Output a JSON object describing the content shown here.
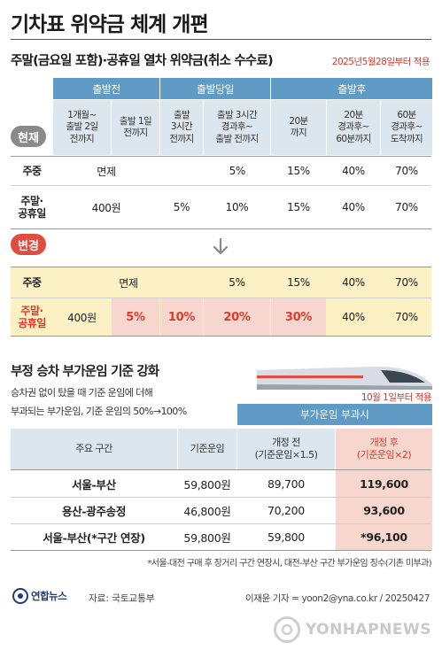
{
  "title": "기차표 위약금 체계 개편",
  "section1": {
    "subtitle": "주말(금요일 포함)·공휴일 열차 위약금(취소 수수료)",
    "effective": "2025년5월28일부터 적용",
    "groups": [
      "출발전",
      "출발당일",
      "출발후"
    ],
    "columns": [
      "1개월~\n출발 2일\n전까지",
      "출발 1일\n전까지",
      "출발\n3시간\n전까지",
      "출발 3시간\n경과후~\n출발 전까지",
      "20분\n까지",
      "20분\n경과후~\n60분까지",
      "60분\n경과후~\n도착까지"
    ],
    "badge_current": "현재",
    "badge_changed": "변경",
    "current": {
      "weekday_label": "주중",
      "weekday_free": "면제",
      "weekday": [
        "5%",
        "15%",
        "40%",
        "70%"
      ],
      "weekend_label": "주말·\n공휴일",
      "weekend": [
        "400원",
        "5%",
        "10%",
        "15%",
        "40%",
        "70%"
      ]
    },
    "changed": {
      "weekday_label": "주중",
      "weekday_free": "면제",
      "weekday": [
        "5%",
        "15%",
        "40%",
        "70%"
      ],
      "weekend_label": "주말·\n공휴일",
      "weekend": [
        "400원",
        "5%",
        "10%",
        "20%",
        "30%",
        "40%",
        "70%"
      ]
    }
  },
  "section2": {
    "title": "부정 승차 부가운임 기준 강화",
    "desc1": "승차권 없이 탔을 때 기준 운임에 더해",
    "desc2": "부과되는 부가운임, 기준 운임의 50%→100%",
    "effective": "10월 1일부터 적용",
    "group_header": "부가운임 부과시",
    "headers": [
      "주요 구간",
      "기준운임",
      "개정 전\n(기준운임×1.5)",
      "개정 후\n(기준운임×2)"
    ],
    "rows": [
      {
        "route": "서울-부산",
        "base": "59,800원",
        "before": "89,700",
        "after": "119,600"
      },
      {
        "route": "용산-광주송정",
        "base": "46,800원",
        "before": "70,200",
        "after": "93,600"
      },
      {
        "route": "서울-부산(*구간 연장)",
        "base": "59,800원",
        "before": "59,800",
        "after": "*96,100"
      }
    ],
    "footnote": "*서울-대전 구매 후 장거리 구간 연장시, 대전-부산 구간 부가운임 징수(기존 미부과)"
  },
  "footer": {
    "logo": "연합뉴스",
    "source": "자료: 국토교통부",
    "credit": "이재윤 기자 = yoon2@yna.co.kr / 20250427",
    "watermark": "YONHAPNEWS"
  },
  "colors": {
    "header": "#5f9bc4",
    "accent_red": "#e0392b",
    "highlight_yellow": "#fbf1c4",
    "highlight_pink": "#f7d6cd"
  }
}
